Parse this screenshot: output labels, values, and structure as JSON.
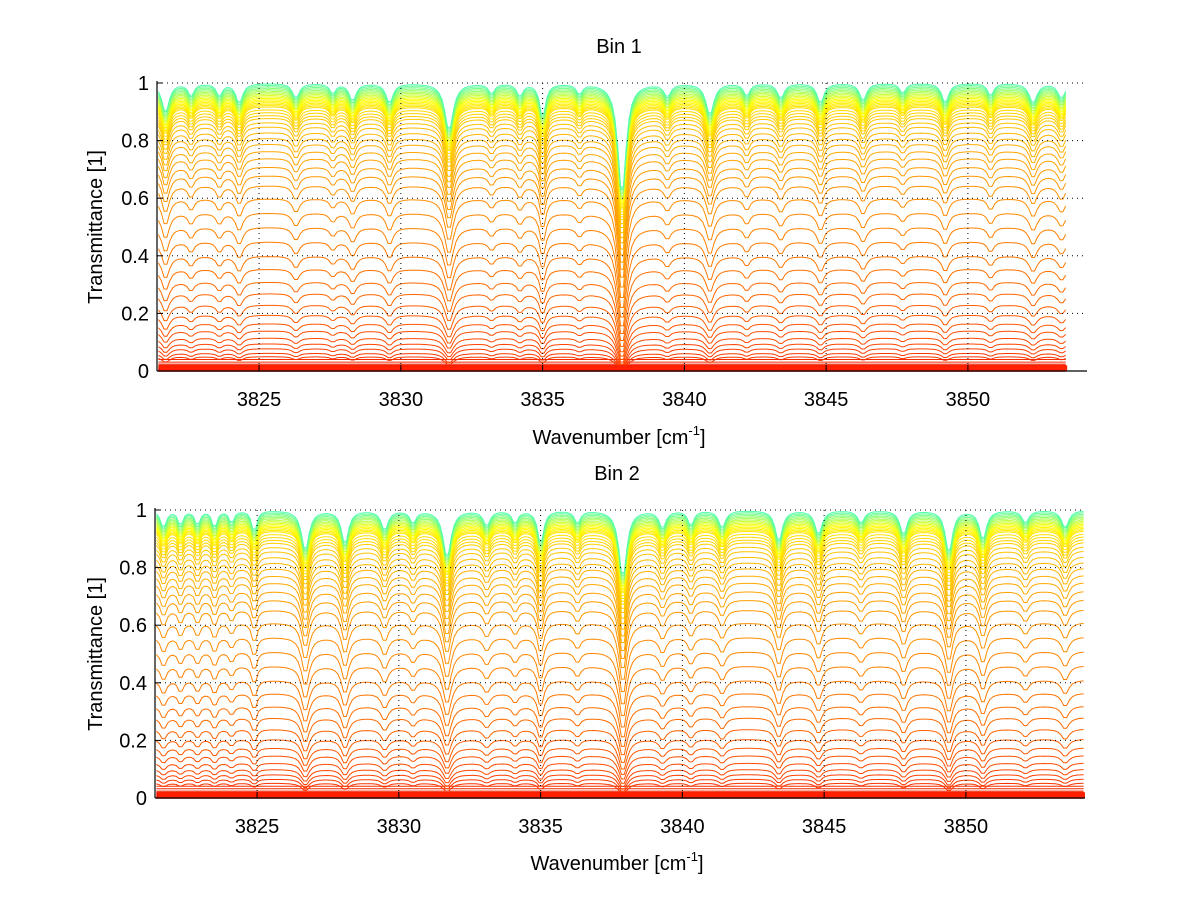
{
  "chart_data": [
    {
      "type": "line",
      "title": "Bin 1",
      "xlabel": "Wavenumber [cm",
      "xlabel_sup": "-1",
      "xlabel_end": "]",
      "ylabel": "Transmittance [1]",
      "xlim": [
        3821.4,
        3854.2
      ],
      "ylim": [
        0,
        1
      ],
      "data_xmax": 3853.5,
      "xticks": [
        3825,
        3830,
        3835,
        3840,
        3845,
        3850
      ],
      "xtick_labels": [
        "3825",
        "3830",
        "3835",
        "3840",
        "3845",
        "3850"
      ],
      "yticks": [
        0,
        0.2,
        0.4,
        0.6,
        0.8,
        1
      ],
      "ytick_labels": [
        "0",
        "0.2",
        "0.4",
        "0.6",
        "0.8",
        "1"
      ],
      "grid": "dotted",
      "box": false,
      "colormap": [
        "#00008f",
        "#0080ff",
        "#40ffbf",
        "#ffff00",
        "#ffbf00",
        "#ff8000",
        "#ff4000",
        "#e00000"
      ],
      "continuum_levels": [
        1.0,
        0.995,
        0.99,
        0.985,
        0.98,
        0.975,
        0.97,
        0.965,
        0.96,
        0.955,
        0.95,
        0.945,
        0.94,
        0.935,
        0.93,
        0.925,
        0.92,
        0.91,
        0.9,
        0.89,
        0.88,
        0.865,
        0.85,
        0.83,
        0.81,
        0.79,
        0.765,
        0.74,
        0.71,
        0.68,
        0.645,
        0.6,
        0.55,
        0.5,
        0.45,
        0.4,
        0.355,
        0.31,
        0.27,
        0.23,
        0.195,
        0.165,
        0.14,
        0.115,
        0.095,
        0.078,
        0.062,
        0.05,
        0.04,
        0.031,
        0.024,
        0.018,
        0.013,
        0.009,
        0.006,
        0.003,
        0.001
      ],
      "lines": [
        {
          "center": 3821.7,
          "depth": 0.12,
          "width": 0.15
        },
        {
          "center": 3822.6,
          "depth": 0.05,
          "width": 0.12
        },
        {
          "center": 3823.6,
          "depth": 0.05,
          "width": 0.12
        },
        {
          "center": 3824.3,
          "depth": 0.08,
          "width": 0.14
        },
        {
          "center": 3826.3,
          "depth": 0.06,
          "width": 0.14
        },
        {
          "center": 3827.6,
          "depth": 0.04,
          "width": 0.12
        },
        {
          "center": 3828.3,
          "depth": 0.07,
          "width": 0.14
        },
        {
          "center": 3829.6,
          "depth": 0.08,
          "width": 0.14
        },
        {
          "center": 3831.7,
          "depth": 0.2,
          "width": 0.17
        },
        {
          "center": 3833.2,
          "depth": 0.04,
          "width": 0.12
        },
        {
          "center": 3834.2,
          "depth": 0.05,
          "width": 0.12
        },
        {
          "center": 3835.0,
          "depth": 0.14,
          "width": 0.12
        },
        {
          "center": 3836.3,
          "depth": 0.04,
          "width": 0.12
        },
        {
          "center": 3837.8,
          "depth": 0.55,
          "width": 0.15
        },
        {
          "center": 3839.4,
          "depth": 0.05,
          "width": 0.14
        },
        {
          "center": 3840.9,
          "depth": 0.13,
          "width": 0.16
        },
        {
          "center": 3842.2,
          "depth": 0.05,
          "width": 0.12
        },
        {
          "center": 3843.4,
          "depth": 0.06,
          "width": 0.14
        },
        {
          "center": 3844.8,
          "depth": 0.08,
          "width": 0.14
        },
        {
          "center": 3846.3,
          "depth": 0.07,
          "width": 0.14
        },
        {
          "center": 3847.7,
          "depth": 0.04,
          "width": 0.12
        },
        {
          "center": 3849.2,
          "depth": 0.08,
          "width": 0.14
        },
        {
          "center": 3850.8,
          "depth": 0.05,
          "width": 0.12
        },
        {
          "center": 3852.3,
          "depth": 0.08,
          "width": 0.16
        },
        {
          "center": 3853.3,
          "depth": 0.06,
          "width": 0.15
        }
      ]
    },
    {
      "type": "line",
      "title": "Bin 2",
      "xlabel": "Wavenumber [cm",
      "xlabel_sup": "-1",
      "xlabel_end": "]",
      "ylabel": "Transmittance [1]",
      "xlim": [
        3821.4,
        3854.2
      ],
      "ylim": [
        0,
        1
      ],
      "data_xmax": 3854.2,
      "xticks": [
        3825,
        3830,
        3835,
        3840,
        3845,
        3850
      ],
      "xtick_labels": [
        "3825",
        "3830",
        "3835",
        "3840",
        "3845",
        "3850"
      ],
      "yticks": [
        0,
        0.2,
        0.4,
        0.6,
        0.8,
        1
      ],
      "ytick_labels": [
        "0",
        "0.2",
        "0.4",
        "0.6",
        "0.8",
        "1"
      ],
      "grid": "dotted",
      "box": false,
      "colormap": [
        "#00008f",
        "#0080ff",
        "#40ffbf",
        "#ffff00",
        "#ffbf00",
        "#ff8000",
        "#ff4000",
        "#e00000"
      ],
      "continuum_levels": [
        1.0,
        0.995,
        0.99,
        0.985,
        0.98,
        0.975,
        0.97,
        0.965,
        0.96,
        0.955,
        0.95,
        0.945,
        0.94,
        0.935,
        0.93,
        0.92,
        0.91,
        0.9,
        0.89,
        0.875,
        0.86,
        0.84,
        0.82,
        0.8,
        0.775,
        0.75,
        0.72,
        0.69,
        0.655,
        0.61,
        0.56,
        0.51,
        0.46,
        0.41,
        0.365,
        0.32,
        0.28,
        0.24,
        0.205,
        0.175,
        0.148,
        0.122,
        0.1,
        0.082,
        0.066,
        0.052,
        0.041,
        0.032,
        0.024,
        0.018,
        0.013,
        0.009,
        0.006,
        0.003,
        0.001
      ],
      "lines": [
        {
          "center": 3821.7,
          "depth": 0.07,
          "width": 0.12
        },
        {
          "center": 3822.3,
          "depth": 0.06,
          "width": 0.1
        },
        {
          "center": 3822.9,
          "depth": 0.06,
          "width": 0.1
        },
        {
          "center": 3823.5,
          "depth": 0.07,
          "width": 0.1
        },
        {
          "center": 3824.1,
          "depth": 0.05,
          "width": 0.1
        },
        {
          "center": 3824.9,
          "depth": 0.09,
          "width": 0.1
        },
        {
          "center": 3826.7,
          "depth": 0.17,
          "width": 0.15
        },
        {
          "center": 3828.1,
          "depth": 0.14,
          "width": 0.14
        },
        {
          "center": 3829.5,
          "depth": 0.08,
          "width": 0.14
        },
        {
          "center": 3830.5,
          "depth": 0.05,
          "width": 0.12
        },
        {
          "center": 3831.7,
          "depth": 0.2,
          "width": 0.16
        },
        {
          "center": 3833.1,
          "depth": 0.06,
          "width": 0.14
        },
        {
          "center": 3834.1,
          "depth": 0.05,
          "width": 0.12
        },
        {
          "center": 3835.0,
          "depth": 0.14,
          "width": 0.12
        },
        {
          "center": 3836.3,
          "depth": 0.05,
          "width": 0.12
        },
        {
          "center": 3837.9,
          "depth": 0.3,
          "width": 0.15
        },
        {
          "center": 3839.3,
          "depth": 0.07,
          "width": 0.14
        },
        {
          "center": 3840.3,
          "depth": 0.06,
          "width": 0.12
        },
        {
          "center": 3841.4,
          "depth": 0.07,
          "width": 0.14
        },
        {
          "center": 3843.4,
          "depth": 0.13,
          "width": 0.14
        },
        {
          "center": 3844.8,
          "depth": 0.1,
          "width": 0.14
        },
        {
          "center": 3846.3,
          "depth": 0.05,
          "width": 0.14
        },
        {
          "center": 3847.8,
          "depth": 0.1,
          "width": 0.14
        },
        {
          "center": 3849.4,
          "depth": 0.18,
          "width": 0.14
        },
        {
          "center": 3850.6,
          "depth": 0.12,
          "width": 0.14
        },
        {
          "center": 3852.1,
          "depth": 0.05,
          "width": 0.14
        },
        {
          "center": 3853.5,
          "depth": 0.07,
          "width": 0.15
        }
      ]
    }
  ]
}
